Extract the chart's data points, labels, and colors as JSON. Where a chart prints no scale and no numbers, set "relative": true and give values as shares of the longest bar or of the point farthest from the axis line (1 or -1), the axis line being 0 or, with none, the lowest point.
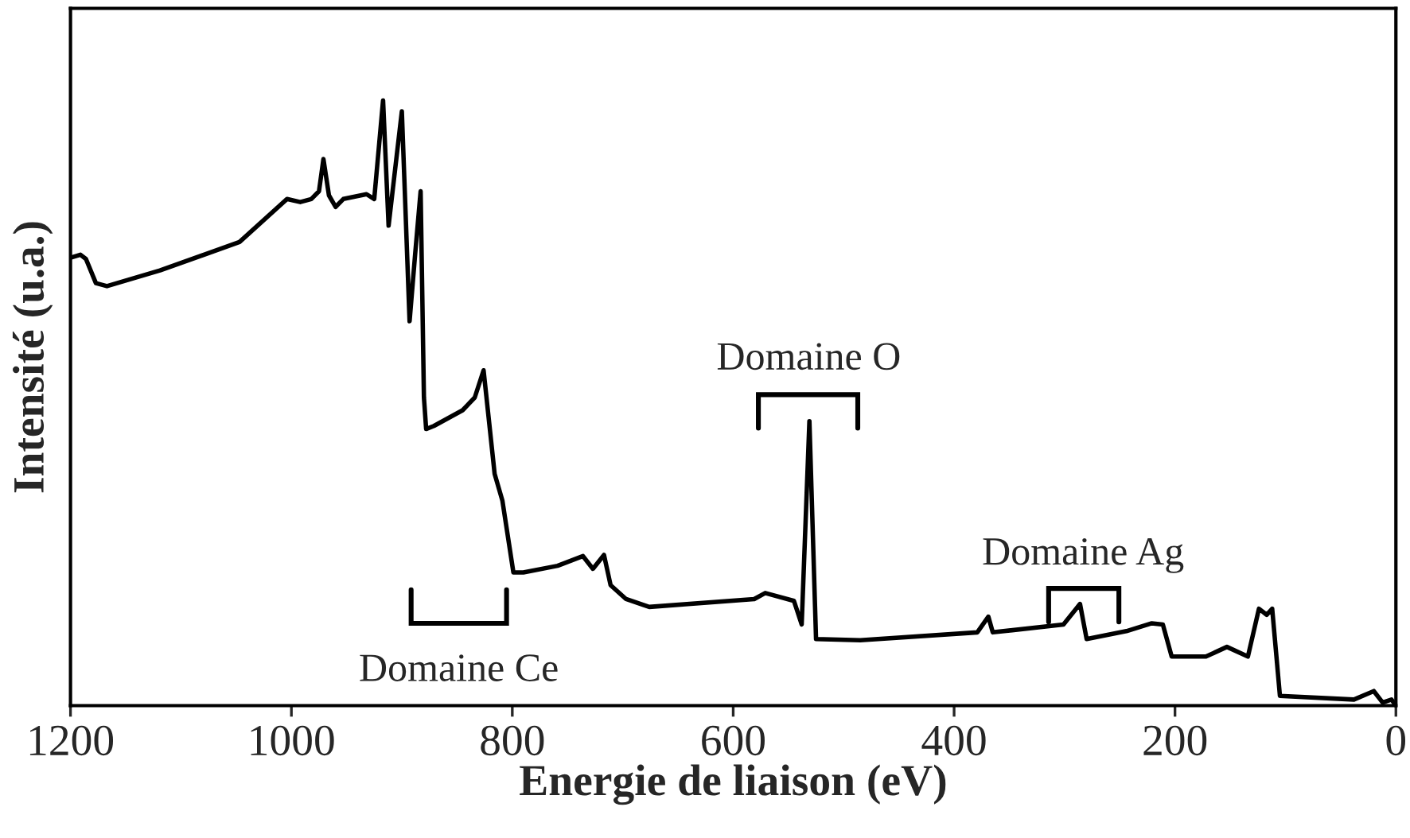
{
  "chart_data": {
    "type": "line",
    "relative": true,
    "xlabel": "Energie de liaison (eV)",
    "ylabel": "Intensité (u.a.)",
    "xlim": [
      1200,
      0
    ],
    "xticks": [
      1200,
      1000,
      800,
      600,
      400,
      200,
      0
    ],
    "grid": false,
    "legend": false,
    "marker": "none",
    "line_style": "solid",
    "series": [
      {
        "color": "#000000",
        "x": [
          1200,
          1191,
          1186,
          1177,
          1167,
          1119,
          1047,
          1004,
          992,
          982,
          975,
          971,
          966,
          960,
          953,
          932,
          925,
          917,
          912,
          900,
          893,
          888,
          883,
          880,
          878,
          871,
          845,
          834,
          826,
          816,
          809,
          799,
          790,
          759,
          736,
          727,
          717,
          711,
          697,
          676,
          581,
          571,
          545,
          538,
          531,
          525,
          485,
          379,
          369,
          365,
          301,
          286,
          280,
          244,
          221,
          211,
          203,
          172,
          153,
          134,
          124,
          117,
          112,
          105,
          38,
          20,
          12,
          4,
          0
        ],
        "values": [
          0.74,
          0.745,
          0.738,
          0.698,
          0.693,
          0.719,
          0.766,
          0.837,
          0.832,
          0.837,
          0.85,
          0.903,
          0.843,
          0.824,
          0.837,
          0.845,
          0.837,
          1.0,
          0.793,
          0.982,
          0.635,
          0.745,
          0.85,
          0.509,
          0.457,
          0.462,
          0.488,
          0.509,
          0.554,
          0.383,
          0.339,
          0.22,
          0.22,
          0.231,
          0.247,
          0.226,
          0.249,
          0.199,
          0.176,
          0.163,
          0.176,
          0.186,
          0.173,
          0.134,
          0.47,
          0.11,
          0.108,
          0.121,
          0.147,
          0.121,
          0.134,
          0.168,
          0.11,
          0.123,
          0.136,
          0.134,
          0.081,
          0.081,
          0.097,
          0.081,
          0.16,
          0.15,
          0.16,
          0.016,
          0.01,
          0.024,
          0.005,
          0.01,
          0.0
        ]
      }
    ],
    "annotations": [
      "Domaine Ce",
      "Domaine O",
      "Domaine Ag"
    ]
  }
}
